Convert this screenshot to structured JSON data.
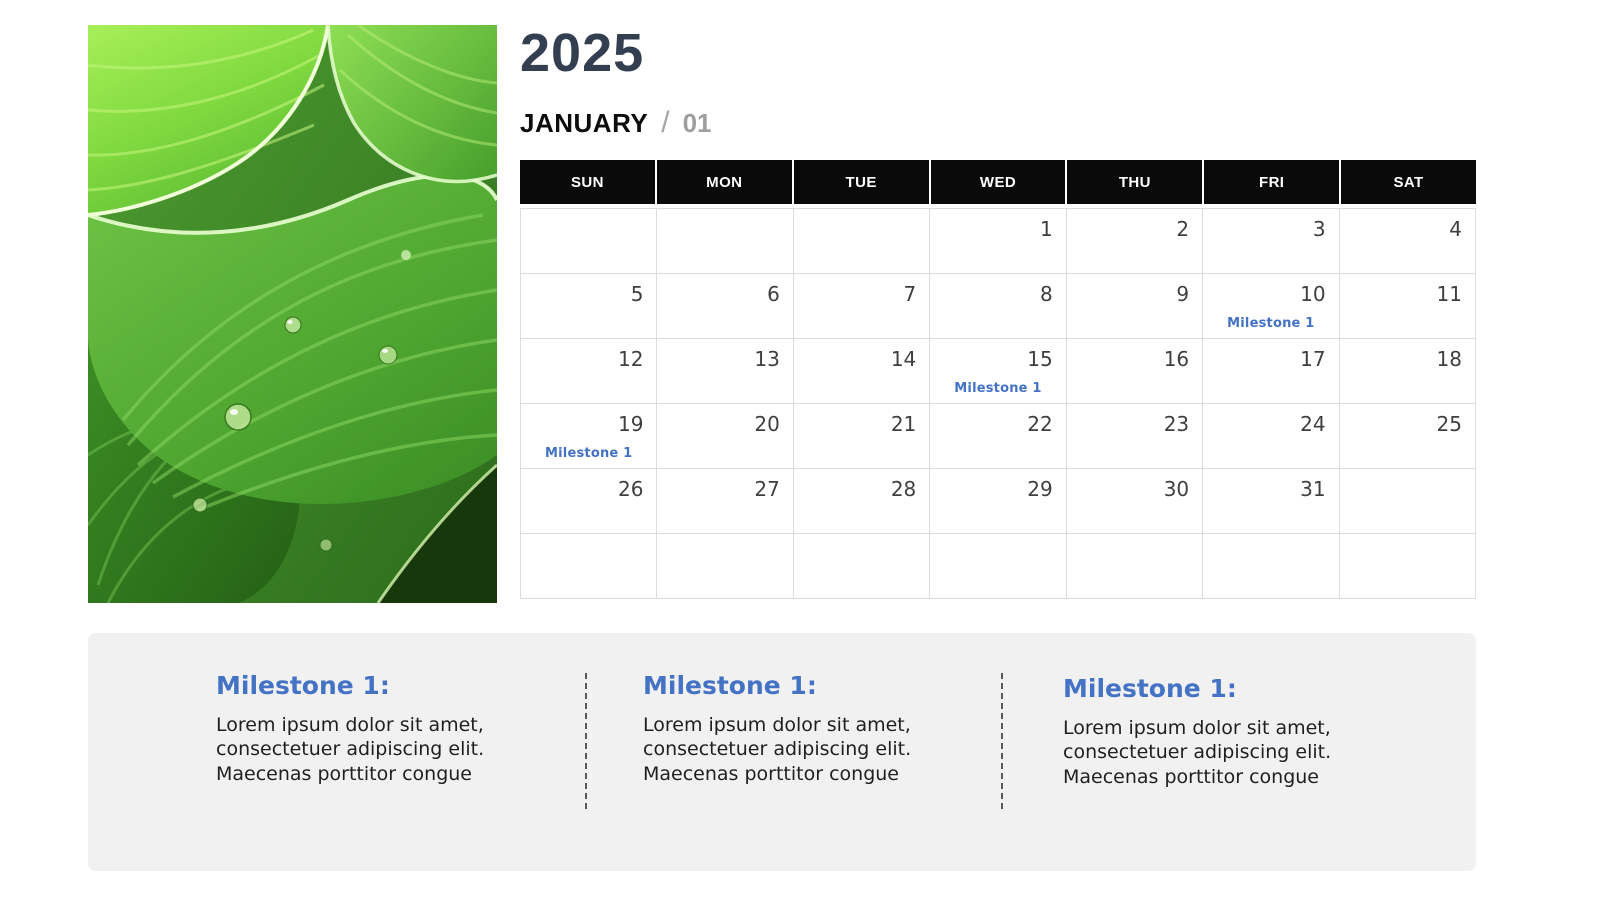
{
  "header": {
    "year": "2025",
    "month": "JANUARY",
    "separator": "/",
    "month_number": "01"
  },
  "photo": {
    "name": "green-hosta-leaves-photo"
  },
  "calendar": {
    "weekdays": [
      "SUN",
      "MON",
      "TUE",
      "WED",
      "THU",
      "FRI",
      "SAT"
    ],
    "weeks": [
      [
        "",
        "",
        "",
        "1",
        "2",
        "3",
        "4"
      ],
      [
        "5",
        "6",
        "7",
        "8",
        "9",
        "10",
        "11"
      ],
      [
        "12",
        "13",
        "14",
        "15",
        "16",
        "17",
        "18"
      ],
      [
        "19",
        "20",
        "21",
        "22",
        "23",
        "24",
        "25"
      ],
      [
        "26",
        "27",
        "28",
        "29",
        "30",
        "31",
        ""
      ],
      [
        "",
        "",
        "",
        "",
        "",
        "",
        ""
      ]
    ],
    "events": [
      {
        "day": "10",
        "label": "Milestone 1"
      },
      {
        "day": "15",
        "label": "Milestone 1"
      },
      {
        "day": "19",
        "label": "Milestone 1"
      }
    ]
  },
  "milestones": [
    {
      "title": "Milestone 1:",
      "body": "Lorem ipsum dolor sit amet, consectetuer adipiscing elit. Maecenas porttitor congue"
    },
    {
      "title": "Milestone 1:",
      "body": "Lorem ipsum dolor sit amet, consectetuer adipiscing elit. Maecenas porttitor congue"
    },
    {
      "title": "Milestone 1:",
      "body": "Lorem ipsum dolor sit amet, consectetuer adipiscing elit. Maecenas porttitor congue"
    }
  ],
  "colors": {
    "accent_blue": "#4472C4",
    "year_navy": "#333F50",
    "weekday_header_bg": "#0a0a0a",
    "panel_bg": "#F1F1F2",
    "muted_gray": "#A6A6A6",
    "grid_border": "#DCDCDC"
  }
}
